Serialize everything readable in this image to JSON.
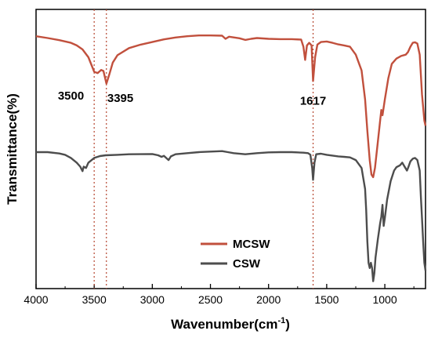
{
  "chart_data": {
    "type": "line",
    "xlabel": "Wavenumber(cm",
    "xlabel_sup": "-1",
    "xlabel_end": ")",
    "ylabel": "Transmittance(%)",
    "x_reversed": true,
    "xlim": [
      4000,
      650
    ],
    "ylim": [
      0,
      1
    ],
    "x_ticks": [
      4000,
      3500,
      3000,
      2500,
      2000,
      1500,
      1000
    ],
    "x_tick_labels": [
      "4000",
      "3500",
      "3000",
      "2500",
      "2000",
      "1500",
      "1000"
    ],
    "y_tick_labels": false,
    "legend": {
      "position": "bottom-right",
      "entries": [
        "MCSW",
        "CSW"
      ]
    },
    "peak_lines": [
      3500,
      3395,
      1617
    ],
    "peak_labels": [
      {
        "text": "3500",
        "x": 3700,
        "y": 0.7
      },
      {
        "text": "3395",
        "x": 3275,
        "y": 0.69
      },
      {
        "text": "1617",
        "x": 1617,
        "y": 0.68
      }
    ],
    "series": [
      {
        "name": "MCSW",
        "color": "#c1503d",
        "points": [
          [
            4000,
            0.94
          ],
          [
            3900,
            0.933
          ],
          [
            3800,
            0.925
          ],
          [
            3700,
            0.915
          ],
          [
            3650,
            0.905
          ],
          [
            3600,
            0.89
          ],
          [
            3550,
            0.86
          ],
          [
            3500,
            0.805
          ],
          [
            3470,
            0.8
          ],
          [
            3440,
            0.812
          ],
          [
            3420,
            0.808
          ],
          [
            3395,
            0.76
          ],
          [
            3370,
            0.795
          ],
          [
            3340,
            0.84
          ],
          [
            3300,
            0.868
          ],
          [
            3200,
            0.895
          ],
          [
            3100,
            0.908
          ],
          [
            3000,
            0.918
          ],
          [
            2900,
            0.928
          ],
          [
            2800,
            0.935
          ],
          [
            2700,
            0.94
          ],
          [
            2600,
            0.943
          ],
          [
            2500,
            0.943
          ],
          [
            2400,
            0.942
          ],
          [
            2370,
            0.93
          ],
          [
            2340,
            0.938
          ],
          [
            2250,
            0.932
          ],
          [
            2200,
            0.926
          ],
          [
            2150,
            0.93
          ],
          [
            2100,
            0.933
          ],
          [
            2000,
            0.93
          ],
          [
            1900,
            0.929
          ],
          [
            1800,
            0.929
          ],
          [
            1720,
            0.927
          ],
          [
            1700,
            0.9
          ],
          [
            1685,
            0.85
          ],
          [
            1670,
            0.905
          ],
          [
            1650,
            0.915
          ],
          [
            1630,
            0.905
          ],
          [
            1617,
            0.77
          ],
          [
            1600,
            0.86
          ],
          [
            1580,
            0.908
          ],
          [
            1550,
            0.918
          ],
          [
            1500,
            0.92
          ],
          [
            1450,
            0.915
          ],
          [
            1400,
            0.909
          ],
          [
            1350,
            0.905
          ],
          [
            1300,
            0.9
          ],
          [
            1250,
            0.87
          ],
          [
            1200,
            0.81
          ],
          [
            1170,
            0.7
          ],
          [
            1150,
            0.58
          ],
          [
            1130,
            0.47
          ],
          [
            1115,
            0.415
          ],
          [
            1100,
            0.405
          ],
          [
            1085,
            0.44
          ],
          [
            1060,
            0.54
          ],
          [
            1040,
            0.62
          ],
          [
            1030,
            0.66
          ],
          [
            1020,
            0.64
          ],
          [
            1000,
            0.7
          ],
          [
            970,
            0.78
          ],
          [
            940,
            0.835
          ],
          [
            900,
            0.855
          ],
          [
            860,
            0.865
          ],
          [
            820,
            0.87
          ],
          [
            800,
            0.88
          ],
          [
            780,
            0.9
          ],
          [
            760,
            0.915
          ],
          [
            740,
            0.917
          ],
          [
            720,
            0.912
          ],
          [
            700,
            0.87
          ],
          [
            680,
            0.72
          ],
          [
            660,
            0.62
          ],
          [
            650,
            0.6
          ]
        ]
      },
      {
        "name": "CSW",
        "color": "#4d4d4d",
        "points": [
          [
            4000,
            0.5
          ],
          [
            3900,
            0.5
          ],
          [
            3800,
            0.495
          ],
          [
            3750,
            0.49
          ],
          [
            3700,
            0.478
          ],
          [
            3650,
            0.46
          ],
          [
            3620,
            0.445
          ],
          [
            3600,
            0.428
          ],
          [
            3590,
            0.445
          ],
          [
            3570,
            0.44
          ],
          [
            3550,
            0.46
          ],
          [
            3500,
            0.478
          ],
          [
            3450,
            0.485
          ],
          [
            3400,
            0.488
          ],
          [
            3300,
            0.49
          ],
          [
            3200,
            0.492
          ],
          [
            3000,
            0.493
          ],
          [
            2950,
            0.488
          ],
          [
            2920,
            0.482
          ],
          [
            2900,
            0.486
          ],
          [
            2860,
            0.47
          ],
          [
            2840,
            0.484
          ],
          [
            2800,
            0.492
          ],
          [
            2700,
            0.496
          ],
          [
            2600,
            0.5
          ],
          [
            2500,
            0.502
          ],
          [
            2400,
            0.504
          ],
          [
            2350,
            0.5
          ],
          [
            2300,
            0.496
          ],
          [
            2200,
            0.492
          ],
          [
            2100,
            0.496
          ],
          [
            2000,
            0.499
          ],
          [
            1900,
            0.5
          ],
          [
            1800,
            0.5
          ],
          [
            1700,
            0.498
          ],
          [
            1660,
            0.496
          ],
          [
            1640,
            0.49
          ],
          [
            1625,
            0.44
          ],
          [
            1617,
            0.395
          ],
          [
            1605,
            0.46
          ],
          [
            1590,
            0.492
          ],
          [
            1550,
            0.494
          ],
          [
            1500,
            0.49
          ],
          [
            1450,
            0.487
          ],
          [
            1400,
            0.484
          ],
          [
            1350,
            0.482
          ],
          [
            1300,
            0.48
          ],
          [
            1250,
            0.47
          ],
          [
            1200,
            0.44
          ],
          [
            1170,
            0.36
          ],
          [
            1160,
            0.28
          ],
          [
            1150,
            0.16
          ],
          [
            1140,
            0.08
          ],
          [
            1130,
            0.06
          ],
          [
            1120,
            0.08
          ],
          [
            1110,
            0.06
          ],
          [
            1100,
            0.01
          ],
          [
            1090,
            0.04
          ],
          [
            1080,
            0.1
          ],
          [
            1060,
            0.17
          ],
          [
            1040,
            0.23
          ],
          [
            1030,
            0.255
          ],
          [
            1020,
            0.3
          ],
          [
            1010,
            0.22
          ],
          [
            1000,
            0.25
          ],
          [
            980,
            0.32
          ],
          [
            950,
            0.39
          ],
          [
            920,
            0.43
          ],
          [
            900,
            0.443
          ],
          [
            870,
            0.45
          ],
          [
            850,
            0.46
          ],
          [
            830,
            0.445
          ],
          [
            810,
            0.43
          ],
          [
            800,
            0.44
          ],
          [
            780,
            0.465
          ],
          [
            760,
            0.475
          ],
          [
            740,
            0.478
          ],
          [
            720,
            0.47
          ],
          [
            700,
            0.43
          ],
          [
            690,
            0.33
          ],
          [
            680,
            0.25
          ],
          [
            670,
            0.16
          ],
          [
            660,
            0.08
          ],
          [
            650,
            0.05
          ]
        ]
      }
    ]
  }
}
